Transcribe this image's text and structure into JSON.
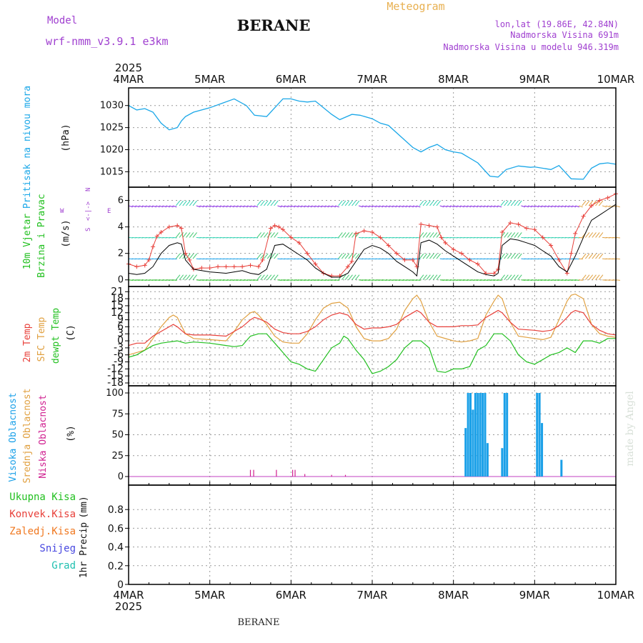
{
  "header": {
    "model_label": "Model",
    "model_value": "wrf-nmm_v3.9.1  e3km",
    "title": "BERANE",
    "meteogram_label": "Meteogram",
    "lonlat": "lon,lat (19.86E, 42.84N)",
    "altitude": "Nadmorska Visina 691m",
    "model_altitude": "Nadmorska Visina u modelu 946.319m",
    "footer_title": "BERANE",
    "watermark": "made by Angel"
  },
  "colors": {
    "pressure": "#1aa7e8",
    "temp2m": "#e8403a",
    "sfc": "#e0a040",
    "dewpt": "#22c020",
    "black": "#000000",
    "purple": "#a020d0",
    "cloud_high": "#1aa0e8",
    "cloud_low": "#d02090",
    "wind_high": "#8020e0"
  },
  "chart_data": [
    {
      "type": "line",
      "panel": "pressure",
      "ylabel": "Pritisak na nivou mora",
      "unit": "(hPa)",
      "ylim": [
        1011.5,
        1034
      ],
      "yticks": [
        1015,
        1020,
        1025,
        1030
      ],
      "x_days": [
        0,
        0.1,
        0.2,
        0.3,
        0.4,
        0.5,
        0.6,
        0.65,
        0.7,
        0.8,
        1.0,
        1.15,
        1.3,
        1.45,
        1.55,
        1.7,
        1.8,
        1.9,
        2.0,
        2.1,
        2.2,
        2.3,
        2.5,
        2.6,
        2.75,
        2.85,
        3.0,
        3.1,
        3.2,
        3.35,
        3.5,
        3.6,
        3.7,
        3.8,
        3.9,
        4.0,
        4.1,
        4.3,
        4.45,
        4.55,
        4.65,
        4.8,
        4.95,
        5.0,
        5.2,
        5.3,
        5.45,
        5.6,
        5.7,
        5.8,
        5.9,
        6.0
      ],
      "values": [
        1030,
        1029,
        1029.3,
        1028.5,
        1026,
        1024.5,
        1025,
        1026.5,
        1027.5,
        1028.5,
        1029.5,
        1030.5,
        1031.5,
        1030,
        1027.8,
        1027.5,
        1029.5,
        1031.5,
        1031.5,
        1031,
        1030.8,
        1031,
        1028,
        1026.8,
        1028,
        1027.8,
        1027,
        1026,
        1025.5,
        1023,
        1020.5,
        1019.5,
        1020.5,
        1021.2,
        1020,
        1019.5,
        1019.2,
        1017,
        1014,
        1013.8,
        1015.5,
        1016.3,
        1016,
        1016.1,
        1015.5,
        1016.4,
        1013.4,
        1013.3,
        1015.8,
        1016.8,
        1017,
        1016.7
      ]
    },
    {
      "type": "line",
      "panel": "wind",
      "ylabel": "10m Vjetar Brzina i Pravac",
      "unit": "(m/s)",
      "compass": {
        "n": "N",
        "w": "W",
        "e": "E",
        "s": "S",
        "mid": "<-|->"
      },
      "ylim": [
        -0.5,
        7
      ],
      "yticks": [
        0,
        2,
        4,
        6
      ],
      "series": [
        {
          "name": "wind_red",
          "x_days": [
            0,
            0.1,
            0.2,
            0.25,
            0.3,
            0.35,
            0.4,
            0.5,
            0.6,
            0.65,
            0.7,
            0.75,
            0.8,
            0.9,
            1.0,
            1.1,
            1.2,
            1.3,
            1.4,
            1.5,
            1.6,
            1.65,
            1.75,
            1.8,
            1.85,
            1.9,
            2.0,
            2.1,
            2.2,
            2.3,
            2.4,
            2.5,
            2.6,
            2.7,
            2.75,
            2.8,
            2.9,
            3.0,
            3.1,
            3.2,
            3.3,
            3.4,
            3.5,
            3.55,
            3.6,
            3.7,
            3.8,
            3.85,
            3.9,
            4.0,
            4.1,
            4.2,
            4.3,
            4.4,
            4.5,
            4.55,
            4.6,
            4.7,
            4.8,
            4.9,
            5.0,
            5.1,
            5.2,
            5.3,
            5.4,
            5.45,
            5.5,
            5.6,
            5.7,
            5.8,
            5.9,
            6.0
          ],
          "values": [
            1.2,
            1.0,
            1.1,
            1.5,
            2.5,
            3.3,
            3.6,
            4.0,
            4.1,
            3.9,
            2.0,
            1.5,
            0.8,
            0.9,
            0.9,
            1.0,
            1.0,
            1.0,
            1.0,
            1.1,
            1.0,
            1.5,
            3.9,
            4.1,
            4.0,
            3.8,
            3.2,
            2.8,
            2.0,
            1.2,
            0.5,
            0.3,
            0.3,
            1.0,
            1.4,
            3.5,
            3.7,
            3.6,
            3.2,
            2.6,
            2.0,
            1.5,
            1.5,
            1.0,
            4.2,
            4.1,
            4.0,
            3.2,
            2.8,
            2.3,
            2.0,
            1.5,
            1.2,
            0.5,
            0.5,
            0.8,
            3.6,
            4.3,
            4.2,
            3.9,
            3.8,
            3.2,
            2.6,
            1.5,
            0.5,
            2.0,
            3.5,
            4.8,
            5.6,
            6.0,
            6.2,
            6.5
          ]
        },
        {
          "name": "wind_black",
          "x_days": [
            0,
            0.1,
            0.2,
            0.3,
            0.4,
            0.5,
            0.6,
            0.65,
            0.7,
            0.8,
            1.0,
            1.2,
            1.4,
            1.5,
            1.6,
            1.7,
            1.8,
            1.9,
            2.0,
            2.1,
            2.2,
            2.3,
            2.4,
            2.5,
            2.6,
            2.7,
            2.8,
            2.9,
            3.0,
            3.1,
            3.2,
            3.3,
            3.4,
            3.5,
            3.55,
            3.6,
            3.7,
            3.8,
            3.9,
            4.0,
            4.1,
            4.2,
            4.3,
            4.4,
            4.5,
            4.55,
            4.6,
            4.7,
            4.8,
            4.9,
            5.0,
            5.1,
            5.2,
            5.3,
            5.4,
            5.5,
            5.6,
            5.7,
            5.8,
            5.9,
            6.0
          ],
          "values": [
            0.5,
            0.4,
            0.5,
            1.0,
            2.0,
            2.6,
            2.8,
            2.7,
            1.5,
            0.8,
            0.6,
            0.5,
            0.7,
            0.5,
            0.4,
            0.8,
            2.6,
            2.7,
            2.3,
            1.9,
            1.5,
            0.9,
            0.5,
            0.2,
            0.2,
            0.5,
            1.4,
            2.3,
            2.6,
            2.4,
            2.0,
            1.4,
            1.0,
            0.6,
            0.3,
            2.8,
            3.0,
            2.7,
            2.2,
            1.8,
            1.4,
            1.0,
            0.6,
            0.4,
            0.3,
            0.5,
            2.6,
            3.1,
            3.0,
            2.8,
            2.6,
            2.2,
            1.8,
            1.0,
            0.6,
            1.8,
            3.2,
            4.5,
            4.9,
            5.3,
            5.7
          ]
        }
      ],
      "barb_rows": [
        0,
        1.6,
        3.2,
        5.6
      ]
    },
    {
      "type": "line",
      "panel": "temperature",
      "ylabel_temp2m": "2m Temp",
      "ylabel_sfc": "SFC Temp",
      "ylabel_dewpt": "dewpt Temp",
      "unit": "(C)",
      "ylim": [
        -18,
        22
      ],
      "yticks": [
        21,
        18,
        15,
        12,
        9,
        6,
        3,
        0,
        -3,
        -6,
        -9,
        -12,
        -15,
        -18
      ],
      "ytick_labels": [
        "21",
        "18",
        "15",
        "12",
        "9",
        "6",
        "3",
        "0",
        "-3",
        "-6",
        "-9",
        "-12",
        "-15",
        "-18"
      ],
      "series": [
        {
          "name": "2m Temp",
          "x_days": [
            0,
            0.1,
            0.2,
            0.3,
            0.4,
            0.5,
            0.55,
            0.6,
            0.7,
            0.8,
            1.0,
            1.2,
            1.3,
            1.4,
            1.5,
            1.55,
            1.6,
            1.7,
            1.8,
            1.9,
            2.0,
            2.1,
            2.2,
            2.3,
            2.4,
            2.5,
            2.6,
            2.7,
            2.8,
            2.9,
            3.0,
            3.1,
            3.2,
            3.3,
            3.4,
            3.5,
            3.55,
            3.6,
            3.7,
            3.8,
            4.0,
            4.1,
            4.2,
            4.3,
            4.4,
            4.5,
            4.55,
            4.6,
            4.7,
            4.8,
            5.0,
            5.1,
            5.2,
            5.3,
            5.4,
            5.45,
            5.5,
            5.6,
            5.7,
            5.8,
            5.9,
            6.0
          ],
          "values": [
            -2,
            -1,
            -1,
            2,
            4,
            6,
            7,
            6,
            3,
            2.5,
            2.5,
            2,
            4,
            6,
            9,
            10,
            9.5,
            8,
            5,
            3.5,
            3,
            3,
            4,
            6,
            9,
            11,
            12,
            11,
            7,
            5,
            5.5,
            5.5,
            6,
            7,
            10,
            12,
            13,
            12,
            8,
            6,
            6,
            6.5,
            6.5,
            6.8,
            10,
            12,
            13,
            12,
            8,
            5,
            4.5,
            4,
            4.5,
            6.5,
            10,
            12,
            13,
            12,
            7,
            4.5,
            3,
            2.5
          ]
        },
        {
          "name": "SFC Temp",
          "x_days": [
            0,
            0.1,
            0.2,
            0.3,
            0.4,
            0.5,
            0.55,
            0.6,
            0.7,
            0.8,
            1.0,
            1.2,
            1.3,
            1.4,
            1.5,
            1.55,
            1.6,
            1.7,
            1.8,
            1.9,
            2.0,
            2.1,
            2.2,
            2.3,
            2.4,
            2.5,
            2.6,
            2.7,
            2.8,
            2.9,
            3.0,
            3.1,
            3.2,
            3.3,
            3.4,
            3.5,
            3.55,
            3.6,
            3.7,
            3.8,
            4.0,
            4.1,
            4.2,
            4.3,
            4.4,
            4.5,
            4.55,
            4.6,
            4.7,
            4.8,
            5.0,
            5.1,
            5.2,
            5.3,
            5.4,
            5.45,
            5.5,
            5.6,
            5.7,
            5.8,
            5.9,
            6.0
          ],
          "values": [
            -6,
            -5,
            -4,
            1,
            6,
            10,
            11,
            10,
            3,
            1,
            0.5,
            0,
            4,
            9,
            12,
            12.5,
            11,
            7,
            2,
            -0.5,
            -1,
            -1,
            3,
            9,
            14,
            16,
            16.5,
            14,
            6,
            1,
            0,
            0,
            1,
            5,
            13,
            18,
            19.5,
            17,
            8,
            2,
            0,
            -0.5,
            0,
            1,
            11,
            17,
            19.5,
            18,
            8,
            2,
            1,
            0.5,
            1.5,
            9,
            17,
            19.5,
            20,
            18,
            7,
            3,
            2,
            1.5
          ]
        },
        {
          "name": "dewpt Temp",
          "x_days": [
            0,
            0.1,
            0.2,
            0.3,
            0.4,
            0.5,
            0.6,
            0.7,
            0.8,
            1.0,
            1.2,
            1.3,
            1.4,
            1.5,
            1.6,
            1.7,
            1.8,
            1.9,
            2.0,
            2.1,
            2.2,
            2.3,
            2.4,
            2.5,
            2.6,
            2.65,
            2.7,
            2.8,
            2.9,
            3.0,
            3.1,
            3.2,
            3.3,
            3.4,
            3.5,
            3.6,
            3.7,
            3.8,
            3.9,
            4.0,
            4.1,
            4.2,
            4.3,
            4.4,
            4.5,
            4.6,
            4.7,
            4.8,
            4.9,
            5.0,
            5.1,
            5.2,
            5.3,
            5.4,
            5.5,
            5.6,
            5.7,
            5.8,
            5.9,
            6.0
          ],
          "values": [
            -7,
            -6,
            -4,
            -2,
            -1,
            -0.5,
            0,
            -1,
            -0.5,
            -1,
            -2,
            -2.5,
            -2,
            2,
            3,
            3,
            -1,
            -5,
            -9,
            -10,
            -12,
            -13,
            -8,
            -3,
            -1,
            2,
            1,
            -4,
            -8,
            -14,
            -13,
            -11,
            -8,
            -3,
            0,
            0,
            -3,
            -13,
            -13.5,
            -12,
            -12,
            -11,
            -4,
            -2,
            3,
            3,
            0,
            -6,
            -9,
            -10,
            -8,
            -6,
            -5,
            -3,
            -5,
            0,
            0,
            -1,
            1,
            1
          ]
        }
      ]
    },
    {
      "type": "bar",
      "panel": "clouds",
      "ylabel_high": "Visoka Oblacnost",
      "ylabel_mid": "Srednja Oblacnost",
      "ylabel_low": "Niska Oblacnost",
      "unit": "(%)",
      "ylim": [
        0,
        100
      ],
      "yticks": [
        0,
        25,
        50,
        75,
        100
      ],
      "series": [
        {
          "name": "Visoka Oblacnost",
          "x_days": [
            4.15,
            4.18,
            4.21,
            4.24,
            4.27,
            4.3,
            4.33,
            4.36,
            4.39,
            4.42,
            4.6,
            4.63,
            4.66,
            5.03,
            5.06,
            5.09,
            5.33
          ],
          "values": [
            58,
            100,
            100,
            80,
            100,
            100,
            100,
            100,
            100,
            40,
            34,
            100,
            100,
            100,
            100,
            64,
            20
          ]
        },
        {
          "name": "Niska Oblacnost",
          "x_days": [
            1.5,
            1.54,
            1.82,
            2.02,
            2.05,
            2.17,
            2.5,
            2.67
          ],
          "values": [
            8,
            8,
            8,
            8,
            8,
            3,
            2,
            2
          ]
        }
      ]
    },
    {
      "type": "line",
      "panel": "precipitation",
      "ylabel": "1hr Precip",
      "unit": "(mm)",
      "ylim": [
        0,
        1
      ],
      "yticks": [
        0,
        0.2,
        0.4,
        0.6,
        0.8
      ],
      "ytick_labels": [
        "0",
        "0.2",
        "0.4",
        "0.6",
        "0.8"
      ],
      "legend": [
        {
          "label": "Ukupna Kisa",
          "color": "#22c020"
        },
        {
          "label": "Konvek.Kisa",
          "color": "#e8403a"
        },
        {
          "label": "Zaledj.Kisa",
          "color": "#f07820"
        },
        {
          "label": "Snijeg",
          "color": "#4848e0"
        },
        {
          "label": "Grad",
          "color": "#20c0b0"
        }
      ],
      "values": []
    }
  ],
  "xaxis": {
    "year": "2025",
    "labels": [
      "4MAR",
      "5MAR",
      "6MAR",
      "7MAR",
      "8MAR",
      "9MAR",
      "10MAR"
    ]
  }
}
